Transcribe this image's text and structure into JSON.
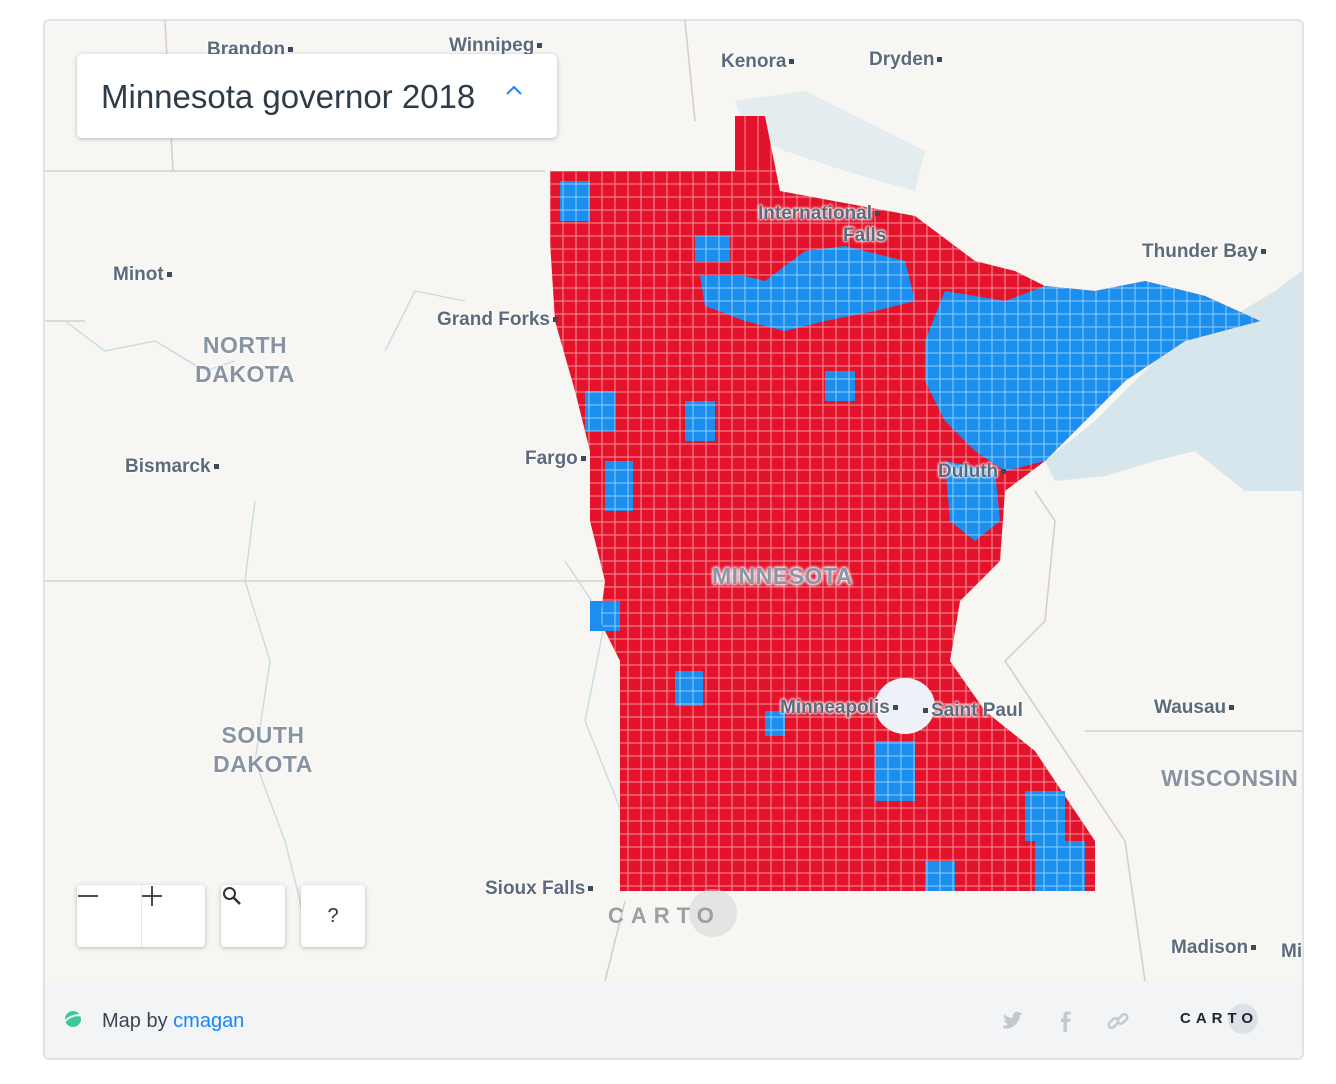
{
  "map": {
    "title": "Minnesota governor 2018",
    "colors": {
      "republican": "#e4132b",
      "democrat": "#1a8ff0",
      "land": "#f8f6f2",
      "water": "#d6e6ec",
      "border": "#c8c8c8"
    },
    "places": {
      "brandon": "Brandon",
      "winnipeg": "Winnipeg",
      "kenora": "Kenora",
      "dryden": "Dryden",
      "international_falls_1": "International",
      "international_falls_2": "Falls",
      "thunder_bay": "Thunder Bay",
      "minot": "Minot",
      "grand_forks": "Grand Forks",
      "fargo": "Fargo",
      "bismarck": "Bismarck",
      "duluth": "Duluth",
      "minneapolis": "Minneapolis",
      "saint_paul": "Saint Paul",
      "wausau": "Wausau",
      "sioux_falls": "Sioux Falls",
      "madison": "Madison",
      "mi": "Mi"
    },
    "regions": {
      "north_dakota_1": "NORTH",
      "north_dakota_2": "DAKOTA",
      "south_dakota_1": "SOUTH",
      "south_dakota_2": "DAKOTA",
      "minnesota": "MINNESOTA",
      "wisconsin": "WISCONSIN"
    },
    "watermark": "CARTO"
  },
  "controls": {
    "zoom_out_icon": "minus-icon",
    "zoom_in_icon": "plus-icon",
    "search_icon": "search-icon",
    "help_label": "?"
  },
  "footer": {
    "prefix": "Map by",
    "author": "cmagan",
    "logo": "CARTO"
  }
}
